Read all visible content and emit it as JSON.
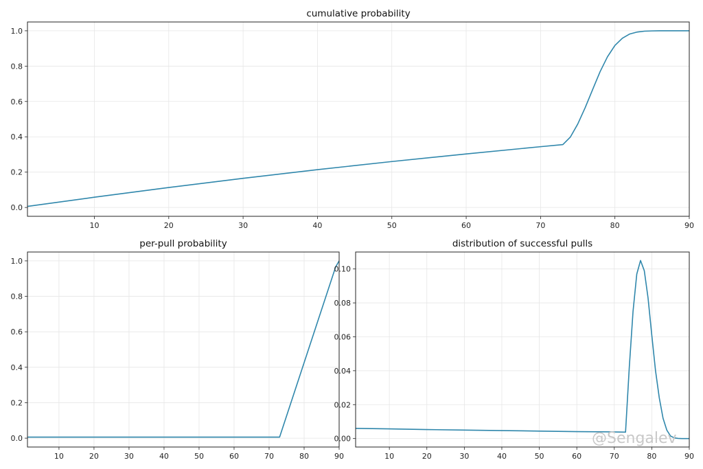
{
  "watermark": "@Sengalev",
  "chart_data": [
    {
      "type": "line",
      "title": "cumulative probability",
      "xlabel": "",
      "ylabel": "",
      "xlim": [
        1,
        90
      ],
      "ylim": [
        -0.05,
        1.05
      ],
      "xticks": [
        10,
        20,
        30,
        40,
        50,
        60,
        70,
        80,
        90
      ],
      "yticks": [
        0.0,
        0.2,
        0.4,
        0.6,
        0.8,
        1.0
      ],
      "ytick_labels": [
        "0.0",
        "0.2",
        "0.4",
        "0.6",
        "0.8",
        "1.0"
      ],
      "grid": true,
      "series": [
        {
          "color": "#2e86ab",
          "x": [
            1,
            10,
            20,
            30,
            40,
            50,
            60,
            70,
            73,
            74,
            75,
            76,
            77,
            78,
            79,
            80,
            81,
            82,
            83,
            84,
            85,
            86,
            87,
            88,
            89,
            90
          ],
          "y": [
            0.006,
            0.058,
            0.113,
            0.165,
            0.214,
            0.26,
            0.303,
            0.344,
            0.356,
            0.398,
            0.472,
            0.565,
            0.667,
            0.768,
            0.853,
            0.917,
            0.958,
            0.982,
            0.993,
            0.998,
            0.9995,
            1.0,
            1.0,
            1.0,
            1.0,
            1.0
          ]
        }
      ]
    },
    {
      "type": "line",
      "title": "per-pull probability",
      "xlabel": "",
      "ylabel": "",
      "xlim": [
        1,
        90
      ],
      "ylim": [
        -0.05,
        1.05
      ],
      "xticks": [
        10,
        20,
        30,
        40,
        50,
        60,
        70,
        80,
        90
      ],
      "yticks": [
        0.0,
        0.2,
        0.4,
        0.6,
        0.8,
        1.0
      ],
      "ytick_labels": [
        "0.0",
        "0.2",
        "0.4",
        "0.6",
        "0.8",
        "1.0"
      ],
      "grid": true,
      "series": [
        {
          "color": "#2e86ab",
          "x": [
            1,
            73,
            89,
            90
          ],
          "y": [
            0.006,
            0.006,
            0.966,
            1.0
          ]
        }
      ]
    },
    {
      "type": "line",
      "title": "distribution of successful pulls",
      "xlabel": "",
      "ylabel": "",
      "xlim": [
        1,
        90
      ],
      "ylim": [
        -0.005,
        0.11
      ],
      "xticks": [
        10,
        20,
        30,
        40,
        50,
        60,
        70,
        80,
        90
      ],
      "yticks": [
        0.0,
        0.02,
        0.04,
        0.06,
        0.08,
        0.1
      ],
      "ytick_labels": [
        "0.00",
        "0.02",
        "0.04",
        "0.06",
        "0.08",
        "0.10"
      ],
      "grid": true,
      "series": [
        {
          "color": "#2e86ab",
          "x": [
            1,
            10,
            20,
            30,
            40,
            50,
            60,
            70,
            73,
            74,
            75,
            76,
            77,
            78,
            79,
            80,
            81,
            82,
            83,
            84,
            85,
            86,
            87,
            88,
            89,
            90
          ],
          "y": [
            0.006,
            0.0057,
            0.0053,
            0.005,
            0.0047,
            0.0044,
            0.0041,
            0.0039,
            0.0038,
            0.042,
            0.075,
            0.097,
            0.105,
            0.099,
            0.083,
            0.061,
            0.04,
            0.024,
            0.012,
            0.005,
            0.0015,
            0.0004,
            0.0001,
            0.0,
            0.0,
            0.0
          ]
        }
      ]
    }
  ]
}
